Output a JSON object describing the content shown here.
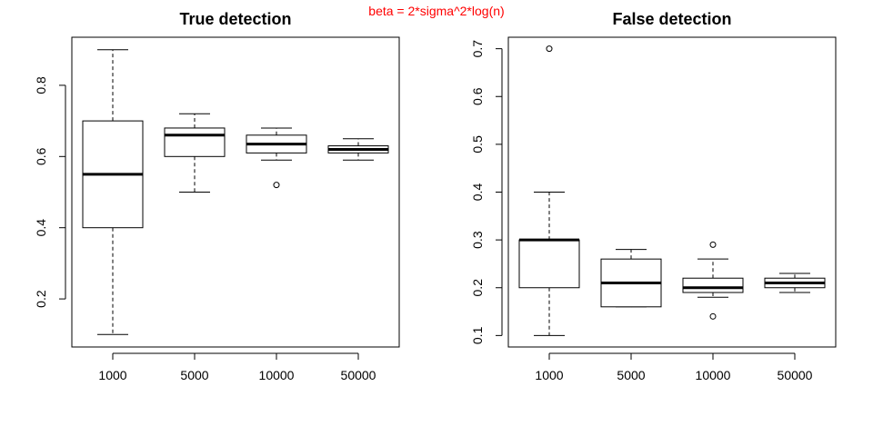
{
  "supertitle": "beta = 2*sigma^2*log(n)",
  "chart_data": [
    {
      "type": "box",
      "title": "True detection",
      "xlabel": "",
      "ylabel": "",
      "categories": [
        "1000",
        "5000",
        "10000",
        "50000"
      ],
      "ylim": [
        0.065,
        0.935
      ],
      "yticks": [
        0.2,
        0.4,
        0.6,
        0.8
      ],
      "ytick_labels": [
        "0.2",
        "0.4",
        "0.6",
        "0.8"
      ],
      "boxes": [
        {
          "category": "1000",
          "whisker_low": 0.1,
          "q1": 0.4,
          "median": 0.55,
          "q3": 0.7,
          "whisker_high": 0.9,
          "outliers": []
        },
        {
          "category": "5000",
          "whisker_low": 0.5,
          "q1": 0.6,
          "median": 0.66,
          "q3": 0.68,
          "whisker_high": 0.72,
          "outliers": []
        },
        {
          "category": "10000",
          "whisker_low": 0.59,
          "q1": 0.61,
          "median": 0.635,
          "q3": 0.66,
          "whisker_high": 0.68,
          "outliers": [
            0.52
          ]
        },
        {
          "category": "50000",
          "whisker_low": 0.59,
          "q1": 0.61,
          "median": 0.62,
          "q3": 0.63,
          "whisker_high": 0.65,
          "outliers": []
        }
      ]
    },
    {
      "type": "box",
      "title": "False detection",
      "xlabel": "",
      "ylabel": "",
      "categories": [
        "1000",
        "5000",
        "10000",
        "50000"
      ],
      "ylim": [
        0.076,
        0.724
      ],
      "yticks": [
        0.1,
        0.2,
        0.3,
        0.4,
        0.5,
        0.6,
        0.7
      ],
      "ytick_labels": [
        "0.1",
        "0.2",
        "0.3",
        "0.4",
        "0.5",
        "0.6",
        "0.7"
      ],
      "boxes": [
        {
          "category": "1000",
          "whisker_low": 0.1,
          "q1": 0.2,
          "median": 0.3,
          "q3": 0.3,
          "whisker_high": 0.4,
          "outliers": [
            0.7
          ]
        },
        {
          "category": "5000",
          "whisker_low": 0.16,
          "q1": 0.16,
          "median": 0.21,
          "q3": 0.26,
          "whisker_high": 0.28,
          "outliers": []
        },
        {
          "category": "10000",
          "whisker_low": 0.18,
          "q1": 0.19,
          "median": 0.2,
          "q3": 0.22,
          "whisker_high": 0.26,
          "outliers": [
            0.14,
            0.29
          ]
        },
        {
          "category": "50000",
          "whisker_low": 0.19,
          "q1": 0.2,
          "median": 0.21,
          "q3": 0.22,
          "whisker_high": 0.23,
          "outliers": []
        }
      ]
    }
  ]
}
